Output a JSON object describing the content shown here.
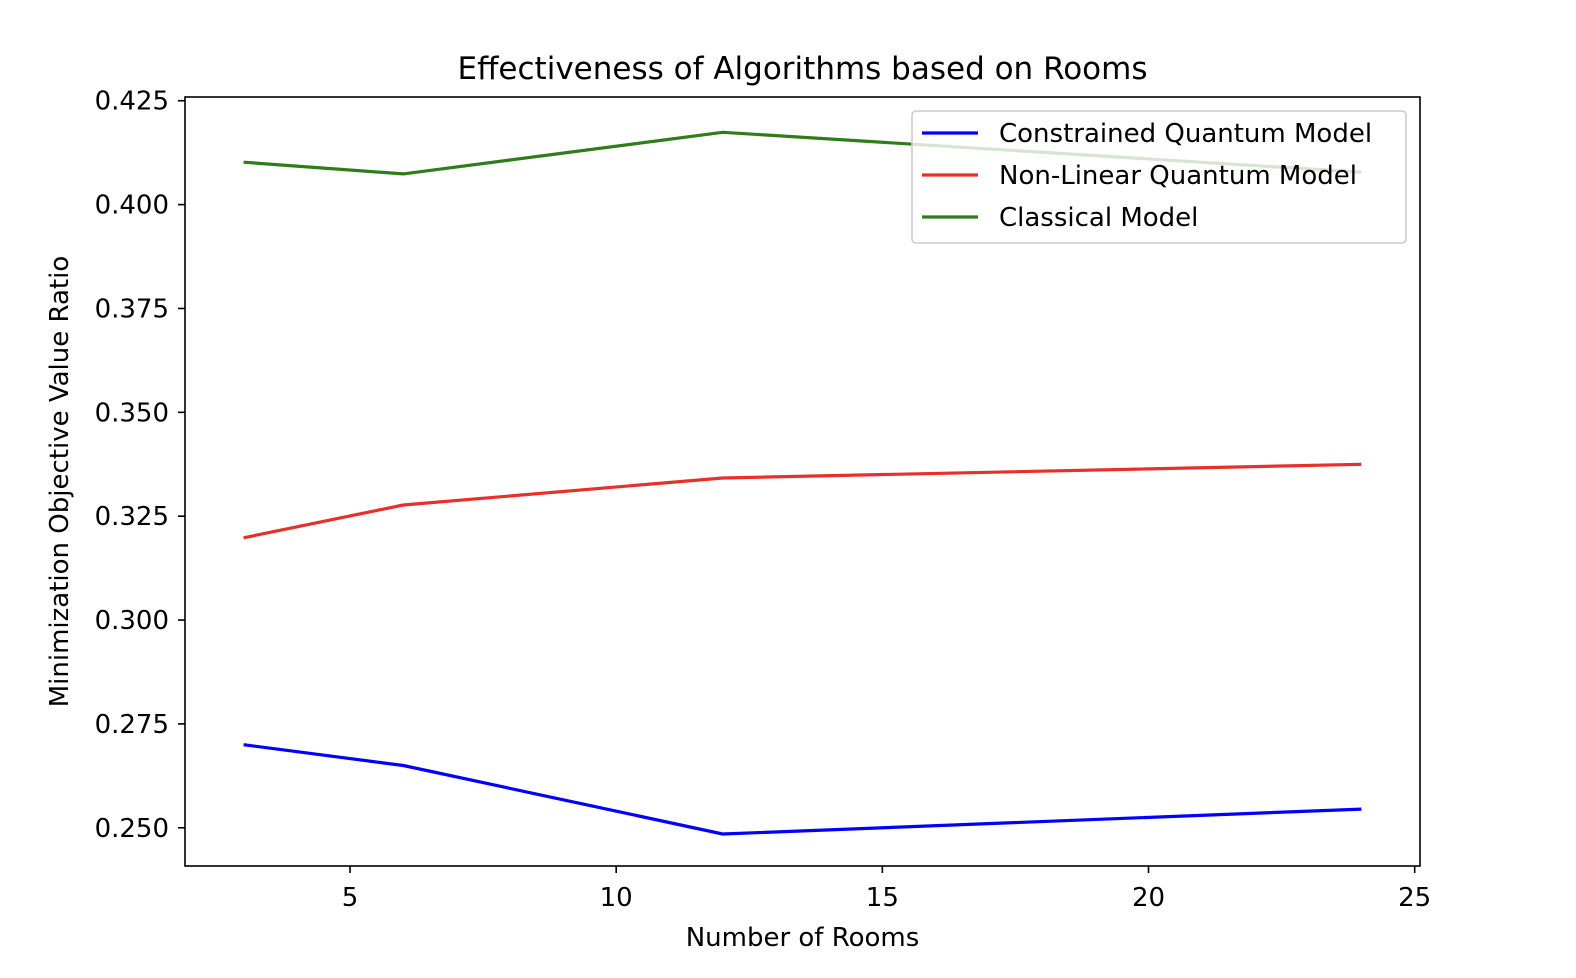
{
  "chart_data": {
    "type": "line",
    "title": "Effectiveness of Algorithms based on Rooms",
    "xlabel": "Number of Rooms",
    "ylabel": "Minimization Objective Value Ratio",
    "xlim": [
      1.9,
      25.1
    ],
    "ylim": [
      0.2408,
      0.4259
    ],
    "xticks": [
      5,
      10,
      15,
      20,
      25
    ],
    "xtick_labels": [
      "5",
      "10",
      "15",
      "20",
      "25"
    ],
    "yticks": [
      0.25,
      0.275,
      0.3,
      0.325,
      0.35,
      0.375,
      0.4,
      0.425
    ],
    "ytick_labels": [
      "0.250",
      "0.275",
      "0.300",
      "0.325",
      "0.350",
      "0.375",
      "0.400",
      "0.425"
    ],
    "grid": false,
    "legend_position": "upper right",
    "x": [
      3,
      6,
      12,
      24
    ],
    "series": [
      {
        "name": "Constrained Quantum Model",
        "color": "#0000ff",
        "values": [
          0.27,
          0.265,
          0.2485,
          0.2545
        ]
      },
      {
        "name": "Non-Linear Quantum Model",
        "color": "#e8302a",
        "values": [
          0.3198,
          0.3277,
          0.3342,
          0.3375
        ]
      },
      {
        "name": "Classical Model",
        "color": "#2e7d1a",
        "values": [
          0.4102,
          0.4074,
          0.4174,
          0.4078
        ]
      }
    ]
  }
}
